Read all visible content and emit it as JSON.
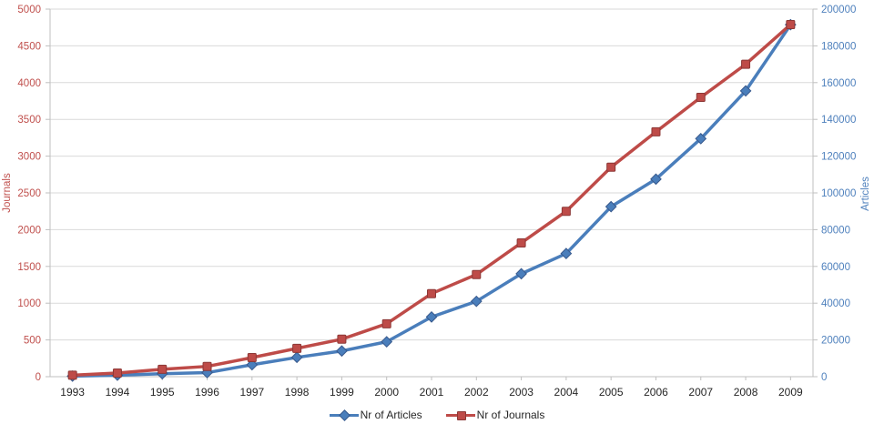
{
  "chart_data": {
    "type": "line",
    "x": [
      1993,
      1994,
      1995,
      1996,
      1997,
      1998,
      1999,
      2000,
      2001,
      2002,
      2003,
      2004,
      2005,
      2006,
      2007,
      2008,
      2009
    ],
    "series": [
      {
        "name": "Nr of Articles",
        "axis": "right",
        "marker": "diamond",
        "color": "#4A7EBB",
        "border_color": "#38598C",
        "values": [
          300,
          800,
          1600,
          2200,
          6500,
          10500,
          14000,
          19000,
          32500,
          41000,
          56000,
          67000,
          92500,
          107500,
          129500,
          155500,
          191500
        ]
      },
      {
        "name": "Nr of Journals",
        "axis": "left",
        "marker": "square",
        "color": "#BE4B48",
        "border_color": "#8C3836",
        "values": [
          20,
          50,
          100,
          140,
          260,
          385,
          510,
          720,
          1130,
          1390,
          1820,
          2250,
          2850,
          3330,
          3800,
          4250,
          4790
        ]
      }
    ],
    "left_axis": {
      "title": "Journals",
      "min": 0,
      "max": 5000,
      "step": 500,
      "color": "#C0504D"
    },
    "right_axis": {
      "title": "Articles",
      "min": 0,
      "max": 200000,
      "step": 20000,
      "color": "#4F81BD"
    },
    "x_label_color": "#262626",
    "grid_color": "#D9D9D9",
    "axis_line_color": "#BFBFBF",
    "grid": true,
    "legend_position": "bottom"
  }
}
